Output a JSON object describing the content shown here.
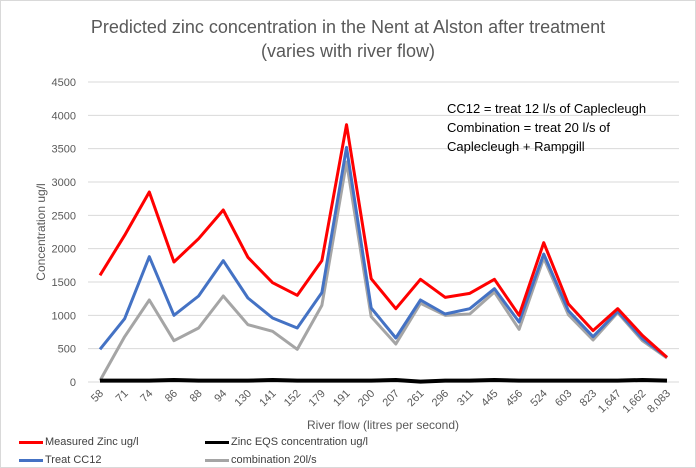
{
  "chart_data": {
    "type": "line",
    "title": [
      "Predicted zinc concentration in the Nent at Alston after treatment",
      "(varies with river flow)"
    ],
    "xlabel": "River flow (litres per second)",
    "ylabel": "Concentration ug/l",
    "ylim": [
      0,
      4500
    ],
    "yticks": [
      0,
      500,
      1000,
      1500,
      2000,
      2500,
      3000,
      3500,
      4000,
      4500
    ],
    "grid": true,
    "legend_position": "bottom",
    "categories": [
      "58",
      "71",
      "74",
      "86",
      "88",
      "94",
      "130",
      "141",
      "152",
      "179",
      "191",
      "200",
      "207",
      "261",
      "296",
      "311",
      "445",
      "456",
      "524",
      "603",
      "823",
      "1,647",
      "1,662",
      "8,083"
    ],
    "series": [
      {
        "name": "Measured Zinc ug/l",
        "color": "#ff0000",
        "values": [
          1600,
          2200,
          2850,
          1800,
          2150,
          2580,
          1870,
          1490,
          1300,
          1820,
          3860,
          1550,
          1100,
          1540,
          1270,
          1330,
          1540,
          1000,
          2090,
          1170,
          770,
          1100,
          700,
          370
        ]
      },
      {
        "name": "Zinc EQS concentration ug/l",
        "color": "#000000",
        "values": [
          20,
          20,
          20,
          30,
          20,
          20,
          20,
          30,
          20,
          20,
          20,
          20,
          30,
          5,
          20,
          20,
          30,
          20,
          20,
          20,
          20,
          20,
          30,
          20
        ]
      },
      {
        "name": "Treat CC12",
        "color": "#4472c4",
        "values": [
          490,
          950,
          1880,
          1000,
          1290,
          1820,
          1260,
          960,
          810,
          1340,
          3520,
          1110,
          660,
          1230,
          1020,
          1100,
          1400,
          900,
          1920,
          1070,
          680,
          1060,
          650,
          370
        ]
      },
      {
        "name": "combination 20l/s",
        "color": "#a5a5a5",
        "values": [
          20,
          680,
          1230,
          620,
          810,
          1290,
          860,
          760,
          490,
          1150,
          3300,
          980,
          570,
          1180,
          1000,
          1020,
          1350,
          790,
          1860,
          1010,
          630,
          1040,
          620,
          360
        ]
      }
    ],
    "annotation": [
      "CC12 = treat 12 l/s of Caplecleugh",
      "Combination = treat 20 l/s of",
      "Caplecleugh + Rampgill"
    ]
  }
}
